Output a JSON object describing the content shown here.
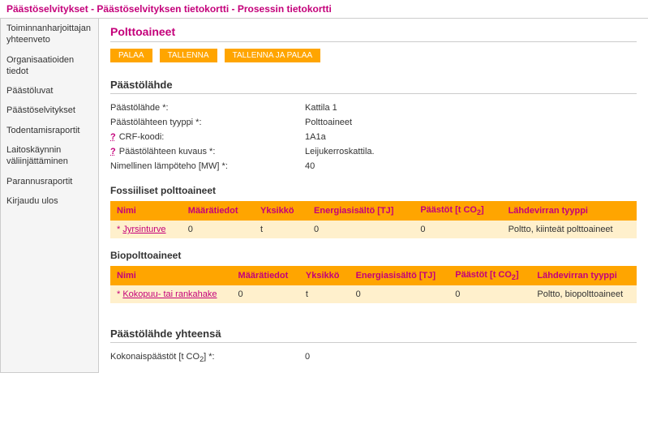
{
  "breadcrumb": {
    "item1": "Päästöselvitykset",
    "item2": "Päästöselvityksen tietokortti",
    "current": "Prosessin tietokortti",
    "sep": " - "
  },
  "sidebar": {
    "items": [
      "Toiminnanharjoittajan yhteenveto",
      "Organisaatioiden tiedot",
      "Päästöluvat",
      "Päästöselvitykset",
      "Todentamisraportit",
      "Laitoskäynnin väliinjättäminen",
      "Parannusraportit",
      "Kirjaudu ulos"
    ]
  },
  "page_title": "Polttoaineet",
  "buttons": {
    "back": "PALAA",
    "save": "TALLENNA",
    "save_back": "TALLENNA JA PALAA"
  },
  "source_section": {
    "title": "Päästölähde",
    "fields": [
      {
        "label": "Päästölähde *:",
        "value": "Kattila 1",
        "help": false
      },
      {
        "label": "Päästölähteen tyyppi *:",
        "value": "Polttoaineet",
        "help": false
      },
      {
        "label": "CRF-koodi:",
        "value": "1A1a",
        "help": true
      },
      {
        "label": "Päästölähteen kuvaus *:",
        "value": "Leijukerroskattila.",
        "help": true
      },
      {
        "label": "Nimellinen lämpöteho [MW] *:",
        "value": "40",
        "help": false
      }
    ]
  },
  "fossil_section": {
    "title": "Fossiiliset polttoaineet",
    "headers": {
      "name": "Nimi",
      "qty": "Määrätiedot",
      "unit": "Yksikkö",
      "energy": "Energiasisältö [TJ]",
      "emissions_pre": "Päästöt [t CO",
      "emissions_post": "]",
      "sourcetype": "Lähdevirran tyyppi"
    },
    "rows": [
      {
        "name": "Jyrsinturve",
        "qty": "0",
        "unit": "t",
        "energy": "0",
        "emissions": "0",
        "sourcetype": "Poltto, kiinteät polttoaineet"
      }
    ]
  },
  "bio_section": {
    "title": "Biopolttoaineet",
    "headers": {
      "name": "Nimi",
      "qty": "Määrätiedot",
      "unit": "Yksikkö",
      "energy": "Energiasisältö [TJ]",
      "emissions_pre": "Päästöt [t CO",
      "emissions_post": "]",
      "sourcetype": "Lähdevirran tyyppi"
    },
    "rows": [
      {
        "name": "Kokopuu- tai rankahake",
        "qty": "0",
        "unit": "t",
        "energy": "0",
        "emissions": "0",
        "sourcetype": "Poltto, biopolttoaineet"
      }
    ]
  },
  "total_section": {
    "title": "Päästölähde yhteensä",
    "label_pre": "Kokonaispäästöt [t CO",
    "label_post": "] *:",
    "value": "0"
  },
  "colors": {
    "accent": "#c4007a",
    "button_bg": "#ffa500",
    "table_header_bg": "#ffa500",
    "table_row_bg": "#fff0cc"
  }
}
